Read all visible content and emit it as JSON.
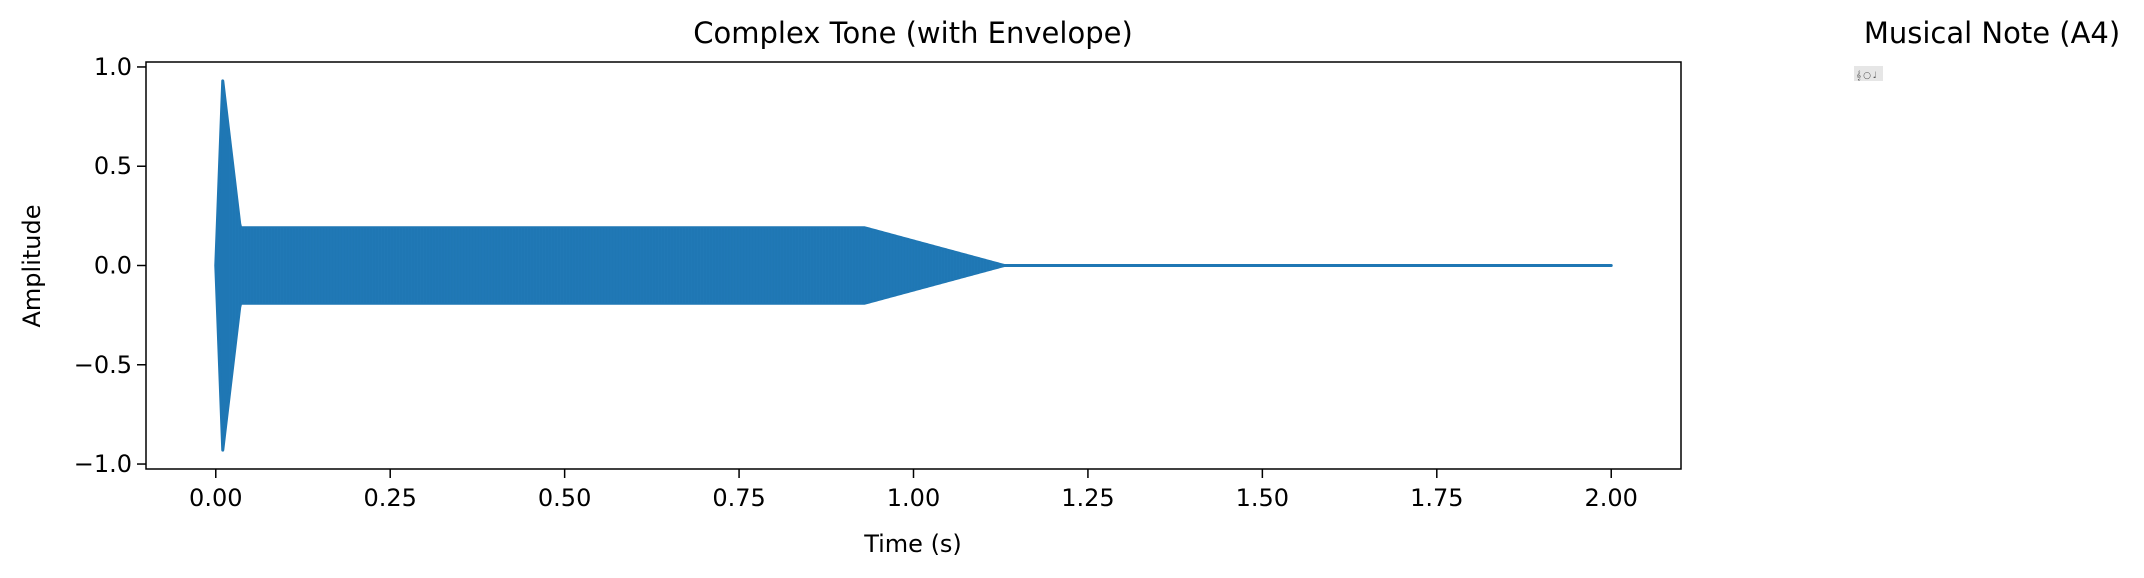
{
  "chart_data": [
    {
      "type": "line",
      "title": "Complex Tone (with Envelope)",
      "xlabel": "Time (s)",
      "ylabel": "Amplitude",
      "xlim": [
        -0.1,
        2.1
      ],
      "ylim": [
        -1.0,
        1.0
      ],
      "x_ticks": [
        0.0,
        0.25,
        0.5,
        0.75,
        1.0,
        1.25,
        1.5,
        1.75,
        2.0
      ],
      "x_tick_labels": [
        "0.00",
        "0.25",
        "0.50",
        "0.75",
        "1.00",
        "1.25",
        "1.50",
        "1.75",
        "2.00"
      ],
      "y_ticks": [
        -1.0,
        -0.5,
        0.0,
        0.5,
        1.0
      ],
      "y_tick_labels": [
        "−1.0",
        "−0.5",
        "0.0",
        "0.5",
        "1.0"
      ],
      "grid": false,
      "line_color": "#1f77b4",
      "series": [
        {
          "envelope_upper": [
            {
              "x": 0.0,
              "y": 0.0
            },
            {
              "x": 0.01,
              "y": 0.93
            },
            {
              "x": 0.035,
              "y": 0.19
            },
            {
              "x": 0.93,
              "y": 0.19
            },
            {
              "x": 1.13,
              "y": 0.0
            },
            {
              "x": 2.0,
              "y": 0.0
            }
          ]
        }
      ]
    }
  ],
  "note_panel": {
    "title": "Musical Note (A4)",
    "glyph": "𝄞 ○ ♩"
  }
}
